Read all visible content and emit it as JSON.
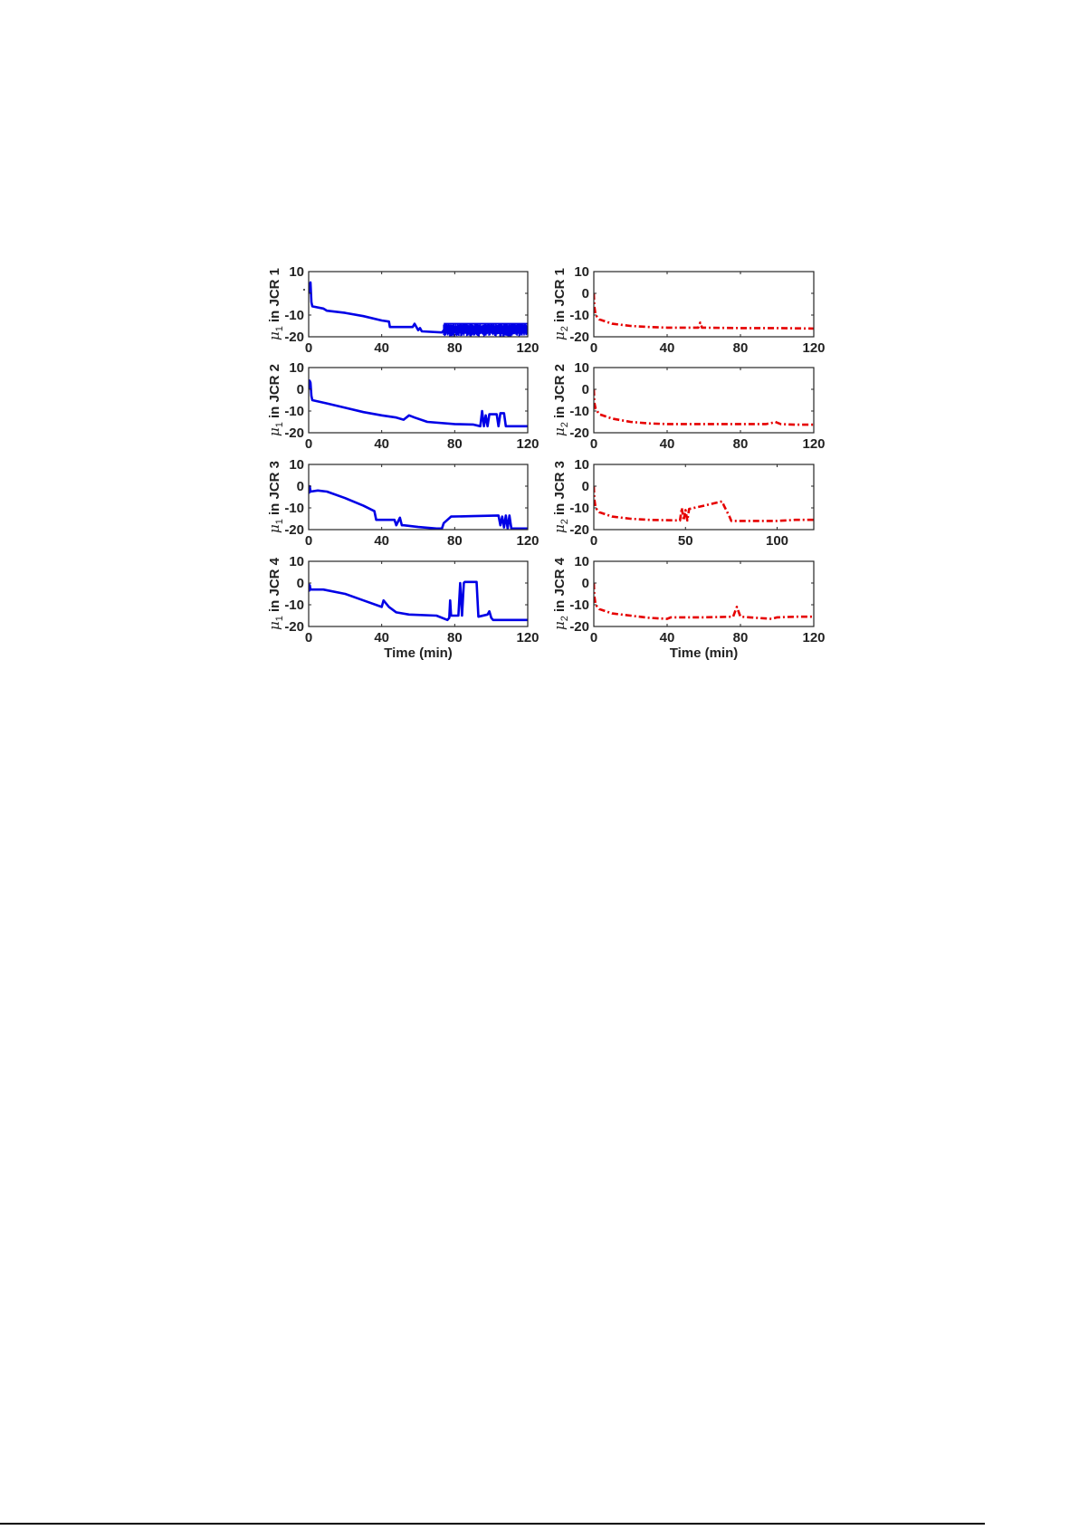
{
  "figure": {
    "xlabel": "Time (min)",
    "panels_layout": "4 rows x 2 columns"
  },
  "chart_data": [
    {
      "type": "line",
      "panel": "row1-left",
      "ylabel": "μ1 in JCR 1",
      "ylabel_main": "μ",
      "ylabel_sub": "1",
      "ylabel_rest": " in JCR 1",
      "color": "#0000e6",
      "linestyle": "solid",
      "xlim": [
        0,
        120
      ],
      "ylim": [
        -20,
        10
      ],
      "xticks": [
        0,
        40,
        80,
        120
      ],
      "yticks": [
        10,
        0,
        -10,
        -20
      ],
      "xtick_labels": [
        "0",
        "40",
        "80",
        "120"
      ],
      "ytick_labels": [
        "10",
        "",
        "-10",
        "-20"
      ],
      "x": [
        0,
        0.5,
        1,
        1.5,
        2,
        8,
        10,
        20,
        30,
        40,
        44,
        44.5,
        57,
        58,
        60,
        61,
        62,
        73,
        74,
        120
      ],
      "y": [
        0,
        4,
        5,
        -4,
        -6,
        -7,
        -8,
        -9,
        -10.5,
        -12.5,
        -13,
        -15.5,
        -15.5,
        -14,
        -17,
        -16,
        -17.5,
        -18,
        -17,
        -16
      ],
      "noise_region": {
        "x_start": 74,
        "x_end": 120,
        "low": -20,
        "high": -14
      },
      "xlabel": ""
    },
    {
      "type": "line",
      "panel": "row1-right",
      "ylabel": "μ2 in JCR 1",
      "ylabel_main": "μ",
      "ylabel_sub": "2",
      "ylabel_rest": " in JCR 1",
      "color": "#e60000",
      "linestyle": "dashdot",
      "xlim": [
        0,
        120
      ],
      "ylim": [
        -20,
        10
      ],
      "xticks": [
        0,
        40,
        80,
        120
      ],
      "yticks": [
        10,
        0,
        -10,
        -20
      ],
      "xtick_labels": [
        "0",
        "40",
        "80",
        "120"
      ],
      "ytick_labels": [
        "10",
        "0",
        "-10",
        "-20"
      ],
      "x": [
        0,
        0.3,
        1,
        3,
        10,
        20,
        30,
        40,
        57,
        58,
        59,
        80,
        100,
        120
      ],
      "y": [
        0,
        -6,
        -10,
        -12,
        -14,
        -15,
        -15.5,
        -15.8,
        -15.8,
        -13.5,
        -15.8,
        -16,
        -16,
        -16.2
      ],
      "xlabel": ""
    },
    {
      "type": "line",
      "panel": "row2-left",
      "ylabel": "μ1 in JCR 2",
      "ylabel_main": "μ",
      "ylabel_sub": "1",
      "ylabel_rest": " in JCR 2",
      "color": "#0000e6",
      "linestyle": "solid",
      "xlim": [
        0,
        120
      ],
      "ylim": [
        -20,
        10
      ],
      "xticks": [
        0,
        40,
        80,
        120
      ],
      "yticks": [
        10,
        0,
        -10,
        -20
      ],
      "xtick_labels": [
        "0",
        "40",
        "80",
        "120"
      ],
      "ytick_labels": [
        "10",
        "0",
        "-10",
        "-20"
      ],
      "x": [
        0,
        0.5,
        1,
        1.5,
        2,
        10,
        20,
        30,
        40,
        48,
        52,
        55,
        58,
        65,
        80,
        90,
        94,
        95,
        96,
        97,
        98,
        99,
        103,
        104,
        105,
        107,
        108,
        120
      ],
      "y": [
        0,
        4,
        3,
        -3,
        -5,
        -6.5,
        -8.5,
        -10.5,
        -12,
        -13,
        -14,
        -12,
        -13,
        -15,
        -16,
        -16.2,
        -17,
        -10,
        -17,
        -12,
        -17,
        -11.5,
        -11.5,
        -17,
        -11,
        -11,
        -17,
        -17
      ],
      "xlabel": ""
    },
    {
      "type": "line",
      "panel": "row2-right",
      "ylabel": "μ2 in JCR 2",
      "ylabel_main": "μ",
      "ylabel_sub": "2",
      "ylabel_rest": " in JCR 2",
      "color": "#e60000",
      "linestyle": "dashdot",
      "xlim": [
        0,
        120
      ],
      "ylim": [
        -20,
        10
      ],
      "xticks": [
        0,
        40,
        80,
        120
      ],
      "yticks": [
        10,
        0,
        -10,
        -20
      ],
      "xtick_labels": [
        "0",
        "40",
        "80",
        "120"
      ],
      "ytick_labels": [
        "10",
        "0",
        "-10",
        "-20"
      ],
      "x": [
        0,
        0.3,
        1,
        3,
        10,
        20,
        30,
        40,
        60,
        80,
        94,
        97,
        99,
        102,
        110,
        120
      ],
      "y": [
        0,
        -6,
        -9,
        -11.5,
        -13.5,
        -15,
        -15.7,
        -16,
        -16,
        -16,
        -16,
        -15.5,
        -15,
        -16,
        -16.3,
        -16.3
      ],
      "xlabel": ""
    },
    {
      "type": "line",
      "panel": "row3-left",
      "ylabel": "μ1 in JCR 3",
      "ylabel_main": "μ",
      "ylabel_sub": "1",
      "ylabel_rest": " in JCR 3",
      "color": "#0000e6",
      "linestyle": "solid",
      "xlim": [
        0,
        120
      ],
      "ylim": [
        -20,
        10
      ],
      "xticks": [
        0,
        40,
        80,
        120
      ],
      "yticks": [
        10,
        0,
        -10,
        -20
      ],
      "xtick_labels": [
        "0",
        "40",
        "80",
        "120"
      ],
      "ytick_labels": [
        "10",
        "0",
        "-10",
        "-20"
      ],
      "x": [
        0,
        0.3,
        0.6,
        1,
        5,
        10,
        20,
        30,
        36,
        37,
        47,
        48,
        50,
        51,
        52,
        60,
        70,
        73,
        74,
        76,
        78,
        90,
        104,
        105,
        106,
        107,
        108,
        109,
        110,
        111,
        112,
        120
      ],
      "y": [
        0,
        -3,
        0,
        -2.5,
        -2,
        -2.5,
        -5.5,
        -9,
        -11.5,
        -15.5,
        -15.5,
        -18,
        -14.5,
        -18,
        -18,
        -18.8,
        -19.5,
        -19.5,
        -17,
        -15.5,
        -14,
        -13.8,
        -13.5,
        -18,
        -14,
        -19,
        -13.5,
        -19.5,
        -13.5,
        -19.5,
        -19.5,
        -19.5
      ],
      "xlabel": ""
    },
    {
      "type": "line",
      "panel": "row3-right",
      "ylabel": "μ2 in JCR 3",
      "ylabel_main": "μ",
      "ylabel_sub": "2",
      "ylabel_rest": " in JCR 3",
      "color": "#e60000",
      "linestyle": "dashdot",
      "xlim": [
        0,
        120
      ],
      "ylim": [
        -20,
        10
      ],
      "xticks": [
        0,
        50,
        100
      ],
      "yticks": [
        10,
        0,
        -10,
        -20
      ],
      "xtick_labels": [
        "0",
        "50",
        "100"
      ],
      "ytick_labels": [
        "10",
        "0",
        "-10",
        "-20"
      ],
      "x": [
        0,
        0.3,
        1,
        3,
        10,
        20,
        30,
        47,
        48,
        49,
        50,
        51,
        52,
        60,
        70,
        71,
        74,
        75,
        90,
        100,
        110,
        120
      ],
      "y": [
        0,
        -6,
        -10,
        -12,
        -14,
        -15,
        -15.5,
        -15.8,
        -10,
        -15.8,
        -11,
        -15.8,
        -10.5,
        -9,
        -7,
        -9,
        -14,
        -16,
        -16,
        -16,
        -15.5,
        -15.5
      ],
      "xlabel": ""
    },
    {
      "type": "line",
      "panel": "row4-left",
      "ylabel": "μ1 in JCR 4",
      "ylabel_main": "μ",
      "ylabel_sub": "1",
      "ylabel_rest": " in JCR 4",
      "color": "#0000e6",
      "linestyle": "solid",
      "xlim": [
        0,
        120
      ],
      "ylim": [
        -20,
        10
      ],
      "xticks": [
        0,
        40,
        80,
        120
      ],
      "yticks": [
        10,
        0,
        -10,
        -20
      ],
      "xtick_labels": [
        "0",
        "40",
        "80",
        "120"
      ],
      "ytick_labels": [
        "10",
        "0",
        "-10",
        "-20"
      ],
      "x": [
        0,
        0.3,
        0.6,
        1,
        8,
        20,
        30,
        40,
        41,
        44,
        48,
        55,
        70,
        76,
        77,
        77.5,
        78,
        82,
        83,
        84,
        85,
        85.5,
        92,
        93,
        98,
        99,
        100,
        101,
        110,
        120
      ],
      "y": [
        0,
        -3.5,
        -1,
        -3,
        -3,
        -5,
        -8,
        -11,
        -8,
        -11,
        -13.5,
        -14.5,
        -15,
        -17,
        -16,
        -8,
        -15,
        -15,
        0,
        -15,
        0,
        0.5,
        0.5,
        -15.5,
        -14.5,
        -13,
        -16,
        -17,
        -17,
        -17
      ],
      "xlabel": "Time (min)"
    },
    {
      "type": "line",
      "panel": "row4-right",
      "ylabel": "μ2 in JCR 4",
      "ylabel_main": "μ",
      "ylabel_sub": "2",
      "ylabel_rest": " in JCR 4",
      "color": "#e60000",
      "linestyle": "dashdot",
      "xlim": [
        0,
        120
      ],
      "ylim": [
        -20,
        10
      ],
      "xticks": [
        0,
        40,
        80,
        120
      ],
      "yticks": [
        10,
        0,
        -10,
        -20
      ],
      "xtick_labels": [
        "0",
        "40",
        "80",
        "120"
      ],
      "ytick_labels": [
        "10",
        "0",
        "-10",
        "-20"
      ],
      "x": [
        0,
        0.3,
        1,
        3,
        10,
        20,
        30,
        40,
        42,
        60,
        76,
        78,
        80,
        85,
        97,
        100,
        110,
        120
      ],
      "y": [
        0,
        -6,
        -10,
        -12,
        -14,
        -15,
        -16,
        -16.5,
        -15.8,
        -15.8,
        -15.5,
        -11,
        -15.5,
        -15.8,
        -16.5,
        -15.8,
        -15.5,
        -15.5
      ],
      "xlabel": "Time (min)"
    }
  ]
}
